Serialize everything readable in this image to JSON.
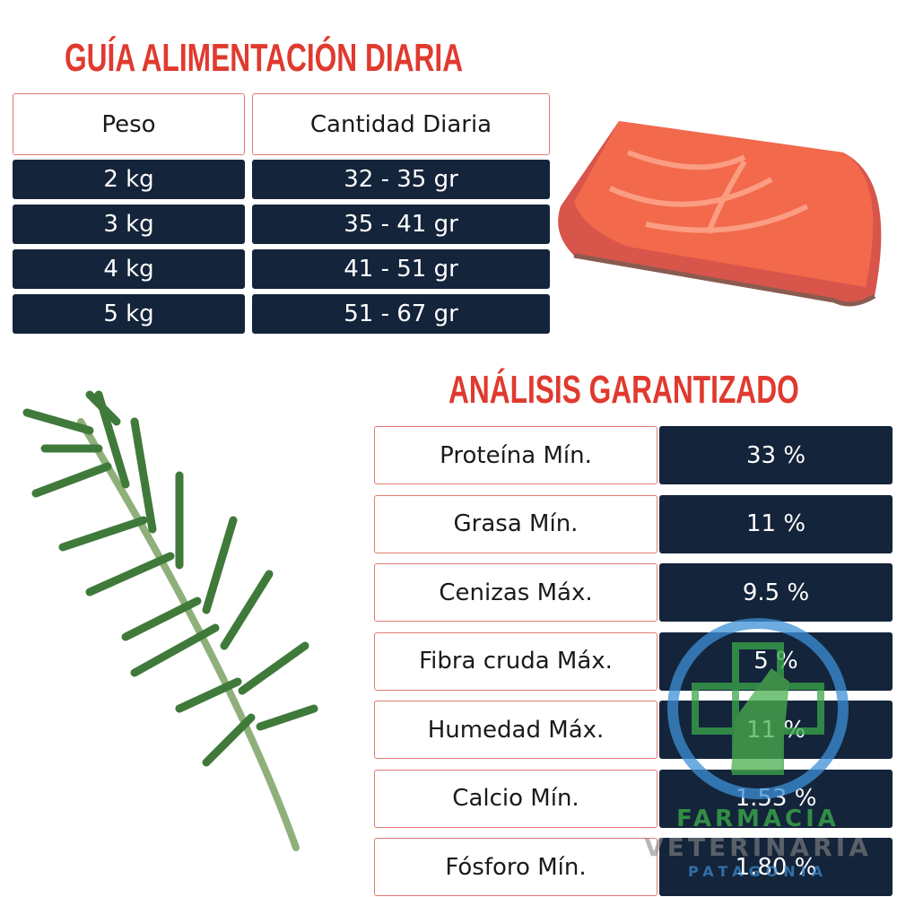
{
  "feeding_guide": {
    "title": "GUÍA ALIMENTACIÓN DIARIA",
    "headers": [
      "Peso",
      "Cantidad Diaria"
    ],
    "rows": [
      [
        "2 kg",
        "32 - 35 gr"
      ],
      [
        "3 kg",
        "35 - 41 gr"
      ],
      [
        "4 kg",
        "41 - 51 gr"
      ],
      [
        "5 kg",
        "51 - 67 gr"
      ]
    ]
  },
  "analysis": {
    "title": "ANÁLISIS GARANTIZADO",
    "rows": [
      [
        "Proteína Mín.",
        "33 %"
      ],
      [
        "Grasa Mín.",
        "11 %"
      ],
      [
        "Cenizas Máx.",
        "9.5 %"
      ],
      [
        "Fibra cruda Máx.",
        "5 %"
      ],
      [
        "Humedad Máx.",
        "11 %"
      ],
      [
        "Calcio Mín.",
        "1.53 %"
      ],
      [
        "Fósforo Mín.",
        "1.80 %"
      ]
    ]
  },
  "watermark": {
    "lines": [
      "FARMACIA",
      "VETERINARIA",
      "PATAGONIA"
    ]
  }
}
